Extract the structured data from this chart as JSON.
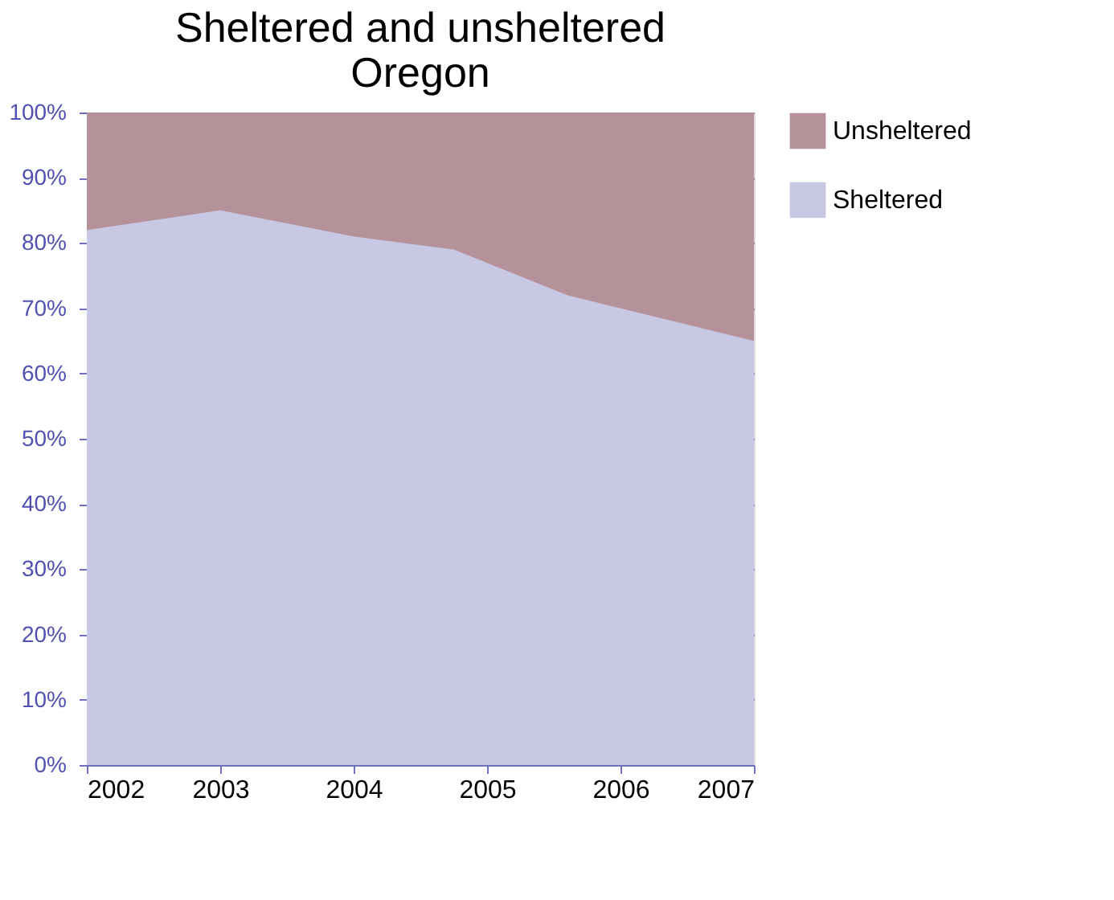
{
  "chart_data": {
    "type": "area",
    "stacked": true,
    "title": "Sheltered and unsheltered\nOregon",
    "x": [
      2002,
      2003,
      2004,
      2004.75,
      2005.6,
      2007
    ],
    "series": [
      {
        "name": "Sheltered",
        "color": "#c8c8e4",
        "values": [
          82,
          85,
          81,
          79,
          72,
          65
        ]
      },
      {
        "name": "Unsheltered",
        "color": "#b5929a",
        "values": [
          18,
          15,
          19,
          21,
          28,
          35
        ]
      }
    ],
    "xlim": [
      2002,
      2007
    ],
    "xticks": [
      2002,
      2003,
      2004,
      2005,
      2006,
      2007
    ],
    "ylim": [
      0,
      100
    ],
    "yticks": [
      {
        "value": 0,
        "label": "0%"
      },
      {
        "value": 10,
        "label": "10%"
      },
      {
        "value": 20,
        "label": "20%"
      },
      {
        "value": 30,
        "label": "30%"
      },
      {
        "value": 40,
        "label": "40%"
      },
      {
        "value": 50,
        "label": "50%"
      },
      {
        "value": 60,
        "label": "60%"
      },
      {
        "value": 70,
        "label": "70%"
      },
      {
        "value": 80,
        "label": "80%"
      },
      {
        "value": 90,
        "label": "90%"
      },
      {
        "value": 100,
        "label": "100%"
      }
    ],
    "grid": "y",
    "legend": "right"
  }
}
